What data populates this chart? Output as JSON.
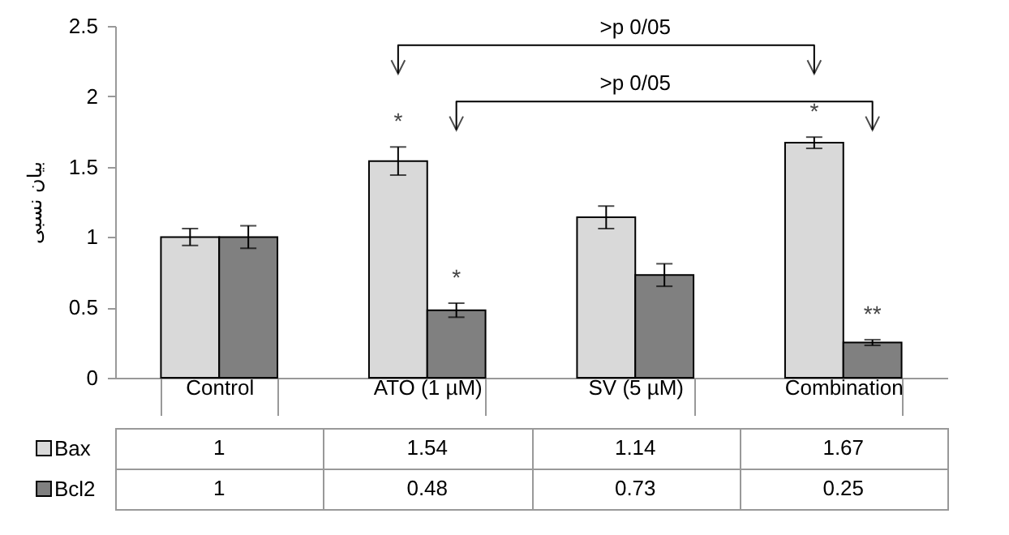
{
  "chart_data": {
    "type": "bar",
    "ylabel": "بیان نسبی",
    "categories": [
      "Control",
      "ATO (1 µM)",
      "SV (5 µM)",
      "Combination"
    ],
    "series": [
      {
        "name": "Bax",
        "color": "#d9d9d9",
        "values": [
          1,
          1.54,
          1.14,
          1.67
        ],
        "errors": [
          0.06,
          0.1,
          0.08,
          0.04
        ]
      },
      {
        "name": "Bcl2",
        "color": "#808080",
        "values": [
          1,
          0.48,
          0.73,
          0.25
        ],
        "errors": [
          0.08,
          0.05,
          0.08,
          0.02
        ]
      }
    ],
    "legend": "bottom left",
    "ylim": [
      0,
      2.5
    ],
    "yticks": [
      0,
      0.5,
      1,
      1.5,
      2,
      2.5
    ],
    "grid": false,
    "data_labels": true,
    "annotations": [
      {
        "text": "*",
        "x": "ATO (1 µM)",
        "y": 1.54
      },
      {
        "text": "*",
        "x": "ATO (1 µM)",
        "y": 0.48
      },
      {
        "text": "*",
        "x": "Combination",
        "y": 1.67
      },
      {
        "text": "**",
        "x": "Combination",
        "y": 0.25
      },
      ">p 0/05",
      ">p 0/05"
    ]
  }
}
